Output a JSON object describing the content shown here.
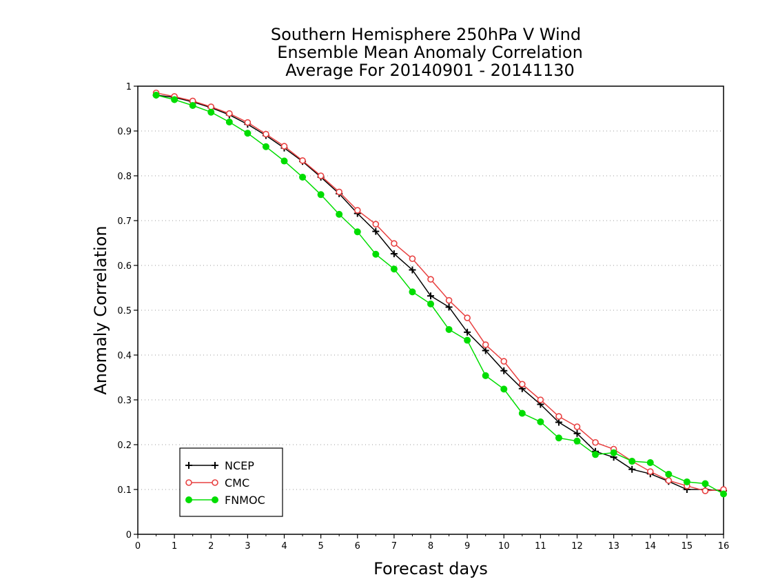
{
  "chart_data": {
    "type": "line",
    "title_lines": [
      "Southern Hemisphere 250hPa V Wind",
      "Ensemble Mean Anomaly Correlation",
      "Average For 20140901 - 20141130"
    ],
    "xlabel": "Forecast days",
    "ylabel": "Anomaly Correlation",
    "xlim": [
      0,
      16
    ],
    "ylim": [
      0,
      1
    ],
    "x_ticks": [
      "0",
      "1",
      "2",
      "3",
      "4",
      "5",
      "6",
      "7",
      "8",
      "9",
      "10",
      "11",
      "12",
      "13",
      "14",
      "15",
      "16"
    ],
    "y_ticks": [
      "0",
      "0.1",
      "0.2",
      "0.3",
      "0.4",
      "0.5",
      "0.6",
      "0.7",
      "0.8",
      "0.9",
      "1"
    ],
    "grid": "horizontal dotted",
    "legend_position": "bottom-left",
    "x": [
      0.5,
      1,
      1.5,
      2,
      2.5,
      3,
      3.5,
      4,
      4.5,
      5,
      5.5,
      6,
      6.5,
      7,
      7.5,
      8,
      8.5,
      9,
      9.5,
      10,
      10.5,
      11,
      11.5,
      12,
      12.5,
      13,
      13.5,
      14,
      14.5,
      15,
      15.5,
      16
    ],
    "series": [
      {
        "name": "NCEP",
        "color": "#000000",
        "marker": "plus",
        "values": [
          0.98,
          0.975,
          0.965,
          0.952,
          0.936,
          0.915,
          0.89,
          0.862,
          0.832,
          0.797,
          0.76,
          0.716,
          0.676,
          0.626,
          0.59,
          0.532,
          0.507,
          0.451,
          0.41,
          0.365,
          0.325,
          0.29,
          0.25,
          0.225,
          0.185,
          0.172,
          0.145,
          0.135,
          0.118,
          0.1,
          0.1,
          0.097
        ]
      },
      {
        "name": "CMC",
        "color": "#e84040",
        "marker": "open-circle",
        "values": [
          0.985,
          0.977,
          0.967,
          0.954,
          0.939,
          0.919,
          0.893,
          0.866,
          0.834,
          0.8,
          0.764,
          0.723,
          0.692,
          0.649,
          0.615,
          0.569,
          0.522,
          0.483,
          0.423,
          0.386,
          0.335,
          0.3,
          0.263,
          0.24,
          0.205,
          0.19,
          0.163,
          0.14,
          0.12,
          0.108,
          0.097,
          0.1
        ]
      },
      {
        "name": "FNMOC",
        "color": "#00dd00",
        "marker": "filled-circle",
        "values": [
          0.98,
          0.97,
          0.957,
          0.942,
          0.92,
          0.895,
          0.865,
          0.833,
          0.797,
          0.758,
          0.714,
          0.675,
          0.625,
          0.592,
          0.541,
          0.514,
          0.457,
          0.433,
          0.354,
          0.324,
          0.27,
          0.251,
          0.215,
          0.208,
          0.178,
          0.182,
          0.163,
          0.16,
          0.134,
          0.117,
          0.113,
          0.09
        ]
      }
    ]
  }
}
